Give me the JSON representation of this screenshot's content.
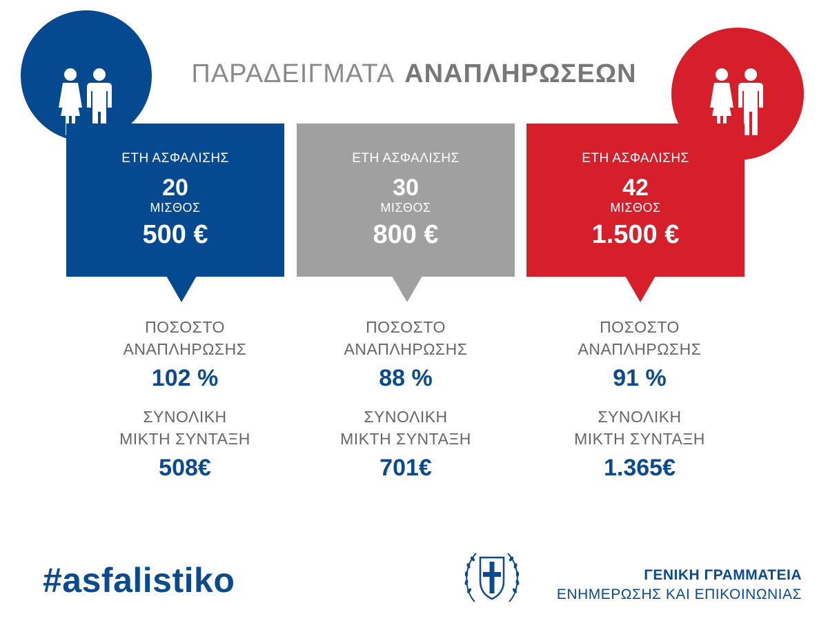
{
  "title": {
    "light": "ΠΑΡΑΔΕΙΓΜΑΤΑ",
    "bold": "ΑΝΑΠΛΗΡΩΣΕΩΝ"
  },
  "colors": {
    "blue": "#054a91",
    "grey": "#a0a0a0",
    "red": "#d71e2b",
    "text_blue": "#0a4a8f"
  },
  "cards": [
    {
      "years_label": "ΕΤΗ ΑΣΦΑΛΙΣΗΣ",
      "years": "20",
      "salary_label": "ΜΙΣΘΟΣ",
      "salary": "500 €",
      "rate_label_1": "ΠΟΣΟΣΤΟ",
      "rate_label_2": "ΑΝΑΠΛΗΡΩΣΗΣ",
      "rate": "102 %",
      "pension_label_1": "ΣΥΝΟΛΙΚΗ",
      "pension_label_2": "ΜΙΚΤΗ ΣΥΝΤΑΞΗ",
      "pension": "508€"
    },
    {
      "years_label": "ΕΤΗ ΑΣΦΑΛΙΣΗΣ",
      "years": "30",
      "salary_label": "ΜΙΣΘΟΣ",
      "salary": "800 €",
      "rate_label_1": "ΠΟΣΟΣΤΟ",
      "rate_label_2": "ΑΝΑΠΛΗΡΩΣΗΣ",
      "rate": "88 %",
      "pension_label_1": "ΣΥΝΟΛΙΚΗ",
      "pension_label_2": "ΜΙΚΤΗ ΣΥΝΤΑΞΗ",
      "pension": "701€"
    },
    {
      "years_label": "ΕΤΗ ΑΣΦΑΛΙΣΗΣ",
      "years": "42",
      "salary_label": "ΜΙΣΘΟΣ",
      "salary": "1.500 €",
      "rate_label_1": "ΠΟΣΟΣΤΟ",
      "rate_label_2": "ΑΝΑΠΛΗΡΩΣΗΣ",
      "rate": "91 %",
      "pension_label_1": "ΣΥΝΟΛΙΚΗ",
      "pension_label_2": "ΜΙΚΤΗ ΣΥΝΤΑΞΗ",
      "pension": "1.365€"
    }
  ],
  "icons": {
    "couple": "couple-icon",
    "emblem": "greek-coat-of-arms"
  },
  "footer": {
    "hashtag": "#asfalistiko",
    "org_line1": "ΓΕΝΙΚΗ ΓΡΑΜΜΑΤΕΙΑ",
    "org_line2": "ΕΝΗΜΕΡΩΣΗΣ ΚΑΙ ΕΠΙΚΟΙΝΩΝΙΑΣ"
  }
}
